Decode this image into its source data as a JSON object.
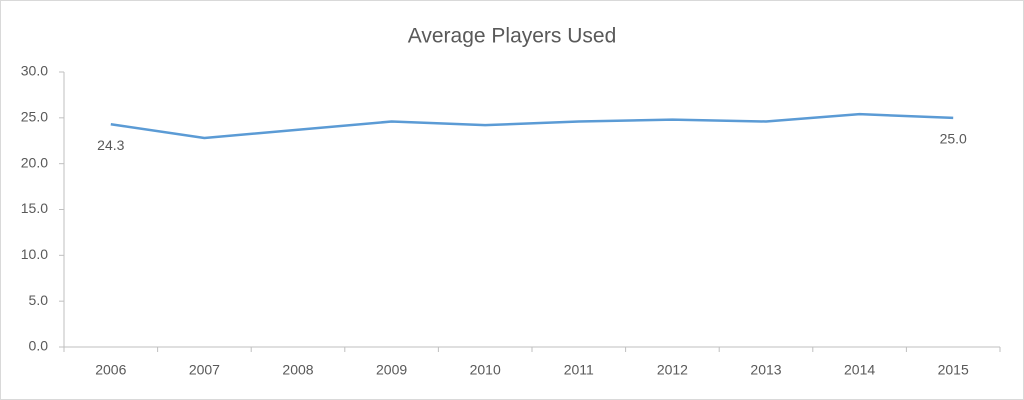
{
  "chart_data": {
    "type": "line",
    "title": "Average Players Used",
    "categories": [
      "2006",
      "2007",
      "2008",
      "2009",
      "2010",
      "2011",
      "2012",
      "2013",
      "2014",
      "2015"
    ],
    "values": [
      24.3,
      22.8,
      23.7,
      24.6,
      24.2,
      24.6,
      24.8,
      24.6,
      25.4,
      25.0
    ],
    "value_labels": [
      "24.3",
      null,
      null,
      null,
      null,
      null,
      null,
      null,
      null,
      "25.0"
    ],
    "color": "#5b9bd5",
    "ylim": [
      0,
      30
    ],
    "yticks": [
      {
        "value": 0,
        "label": "0.0"
      },
      {
        "value": 5,
        "label": "5.0"
      },
      {
        "value": 10,
        "label": "10.0"
      },
      {
        "value": 15,
        "label": "15.0"
      },
      {
        "value": 20,
        "label": "20.0"
      },
      {
        "value": 25,
        "label": "25.0"
      },
      {
        "value": 30,
        "label": "30.0"
      }
    ],
    "grid": false
  }
}
